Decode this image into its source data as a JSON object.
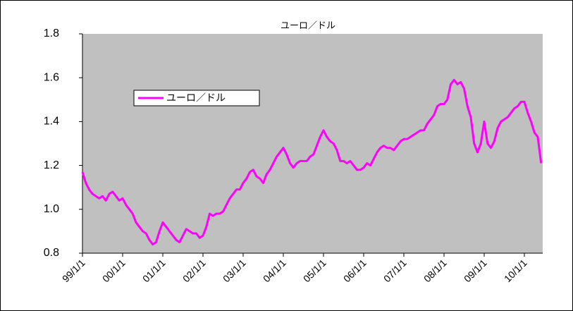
{
  "chart_data": {
    "type": "line",
    "title": "ユーロ／ドル",
    "x": [
      "99/1/1",
      "99/2/1",
      "99/3/1",
      "99/4/1",
      "99/5/1",
      "99/6/1",
      "99/7/1",
      "99/8/1",
      "99/9/1",
      "99/10/1",
      "99/11/1",
      "99/12/1",
      "00/1/1",
      "00/2/1",
      "00/3/1",
      "00/4/1",
      "00/5/1",
      "00/6/1",
      "00/7/1",
      "00/8/1",
      "00/9/1",
      "00/10/1",
      "00/11/1",
      "00/12/1",
      "01/1/1",
      "01/2/1",
      "01/3/1",
      "01/4/1",
      "01/5/1",
      "01/6/1",
      "01/7/1",
      "01/8/1",
      "01/9/1",
      "01/10/1",
      "01/11/1",
      "01/12/1",
      "02/1/1",
      "02/2/1",
      "02/3/1",
      "02/4/1",
      "02/5/1",
      "02/6/1",
      "02/7/1",
      "02/8/1",
      "02/9/1",
      "02/10/1",
      "02/11/1",
      "02/12/1",
      "03/1/1",
      "03/2/1",
      "03/3/1",
      "03/4/1",
      "03/5/1",
      "03/6/1",
      "03/7/1",
      "03/8/1",
      "03/9/1",
      "03/10/1",
      "03/11/1",
      "03/12/1",
      "04/1/1",
      "04/2/1",
      "04/3/1",
      "04/4/1",
      "04/5/1",
      "04/6/1",
      "04/7/1",
      "04/8/1",
      "04/9/1",
      "04/10/1",
      "04/11/1",
      "04/12/1",
      "05/1/1",
      "05/2/1",
      "05/3/1",
      "05/4/1",
      "05/5/1",
      "05/6/1",
      "05/7/1",
      "05/8/1",
      "05/9/1",
      "05/10/1",
      "05/11/1",
      "05/12/1",
      "06/1/1",
      "06/2/1",
      "06/3/1",
      "06/4/1",
      "06/5/1",
      "06/6/1",
      "06/7/1",
      "06/8/1",
      "06/9/1",
      "06/10/1",
      "06/11/1",
      "06/12/1",
      "07/1/1",
      "07/2/1",
      "07/3/1",
      "07/4/1",
      "07/5/1",
      "07/6/1",
      "07/7/1",
      "07/8/1",
      "07/9/1",
      "07/10/1",
      "07/11/1",
      "07/12/1",
      "08/1/1",
      "08/2/1",
      "08/3/1",
      "08/4/1",
      "08/5/1",
      "08/6/1",
      "08/7/1",
      "08/8/1",
      "08/9/1",
      "08/10/1",
      "08/11/1",
      "08/12/1",
      "09/1/1",
      "09/2/1",
      "09/3/1",
      "09/4/1",
      "09/5/1",
      "09/6/1",
      "09/7/1",
      "09/8/1",
      "09/9/1",
      "09/10/1",
      "09/11/1",
      "09/12/1",
      "10/1/1",
      "10/2/1",
      "10/3/1",
      "10/4/1",
      "10/5/1",
      "10/6/1"
    ],
    "series": [
      {
        "name": "ユーロ／ドル",
        "color": "#ff00ff",
        "values": [
          1.17,
          1.12,
          1.09,
          1.07,
          1.06,
          1.05,
          1.06,
          1.04,
          1.07,
          1.08,
          1.06,
          1.04,
          1.05,
          1.02,
          1.0,
          0.98,
          0.94,
          0.92,
          0.9,
          0.89,
          0.86,
          0.84,
          0.85,
          0.9,
          0.94,
          0.92,
          0.9,
          0.88,
          0.86,
          0.85,
          0.88,
          0.91,
          0.9,
          0.89,
          0.89,
          0.87,
          0.88,
          0.92,
          0.98,
          0.97,
          0.98,
          0.98,
          0.99,
          1.02,
          1.05,
          1.07,
          1.09,
          1.09,
          1.12,
          1.14,
          1.17,
          1.18,
          1.15,
          1.14,
          1.12,
          1.16,
          1.18,
          1.21,
          1.24,
          1.26,
          1.28,
          1.25,
          1.21,
          1.19,
          1.21,
          1.22,
          1.22,
          1.22,
          1.24,
          1.25,
          1.29,
          1.33,
          1.36,
          1.33,
          1.31,
          1.3,
          1.27,
          1.22,
          1.22,
          1.21,
          1.22,
          1.2,
          1.18,
          1.18,
          1.19,
          1.21,
          1.2,
          1.23,
          1.26,
          1.28,
          1.29,
          1.28,
          1.28,
          1.27,
          1.29,
          1.31,
          1.32,
          1.32,
          1.33,
          1.34,
          1.35,
          1.36,
          1.36,
          1.39,
          1.41,
          1.43,
          1.47,
          1.48,
          1.48,
          1.5,
          1.57,
          1.59,
          1.57,
          1.58,
          1.55,
          1.47,
          1.42,
          1.3,
          1.26,
          1.3,
          1.4,
          1.3,
          1.28,
          1.31,
          1.37,
          1.4,
          1.41,
          1.42,
          1.44,
          1.46,
          1.47,
          1.49,
          1.49,
          1.44,
          1.4,
          1.35,
          1.33,
          1.21
        ]
      }
    ],
    "ylim": [
      0.8,
      1.8
    ],
    "yticks": [
      0.8,
      {
        "value": 1,
        "label": "1.0"
      },
      1.2,
      1.4,
      1.6,
      1.8
    ],
    "xticks": [
      "99/1/1",
      "00/1/1",
      "01/1/1",
      "02/1/1",
      "03/1/1",
      "04/1/1",
      "05/1/1",
      "06/1/1",
      "07/1/1",
      "08/1/1",
      "09/1/1",
      "10/1/1"
    ],
    "legend": "upper left"
  }
}
